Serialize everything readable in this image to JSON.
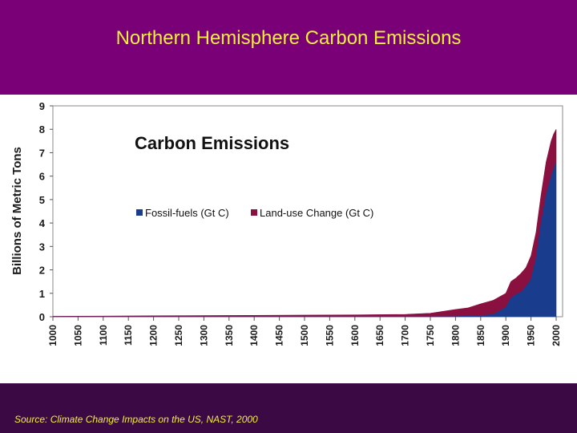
{
  "slide": {
    "title": "Northern Hemisphere Carbon Emissions",
    "source": "Source: Climate Change Impacts on the US, NAST, 2000"
  },
  "colors": {
    "background": "#7a0077",
    "title_text": "#f2ee3c",
    "footer_band": "#3b0a44",
    "fossil": "#1a3c8c",
    "landuse": "#8a1040"
  },
  "chart_data": {
    "type": "area",
    "title": "Carbon Emissions",
    "ylabel": "Billions of Metric Tons",
    "xlabel": "",
    "ylim": [
      0,
      9
    ],
    "xlim": [
      1000,
      2000
    ],
    "yticks": [
      "0",
      "1",
      "2",
      "3",
      "4",
      "5",
      "6",
      "7",
      "8",
      "9"
    ],
    "xticks": [
      "1000",
      "1050",
      "1100",
      "1150",
      "1200",
      "1250",
      "1300",
      "1350",
      "1400",
      "1450",
      "1500",
      "1550",
      "1600",
      "1650",
      "1700",
      "1750",
      "1800",
      "1850",
      "1900",
      "1950",
      "2000"
    ],
    "legend_position": "center-left",
    "stacked": true,
    "x": [
      1000,
      1100,
      1200,
      1300,
      1400,
      1500,
      1600,
      1700,
      1750,
      1800,
      1825,
      1850,
      1875,
      1900,
      1910,
      1920,
      1930,
      1940,
      1950,
      1960,
      1970,
      1980,
      1990,
      1995,
      2000
    ],
    "series": [
      {
        "name": "Fossil-fuels (Gt C)",
        "values": [
          0,
          0,
          0,
          0,
          0,
          0,
          0,
          0,
          0,
          0.01,
          0.03,
          0.05,
          0.1,
          0.4,
          0.8,
          0.95,
          1.05,
          1.3,
          1.6,
          2.5,
          4.0,
          5.2,
          6.0,
          6.3,
          6.6
        ]
      },
      {
        "name": "Land-use Change (Gt C)",
        "values": [
          0.02,
          0.03,
          0.04,
          0.05,
          0.06,
          0.07,
          0.08,
          0.1,
          0.15,
          0.3,
          0.35,
          0.5,
          0.6,
          0.6,
          0.7,
          0.7,
          0.8,
          0.8,
          1.0,
          1.1,
          1.2,
          1.4,
          1.5,
          1.5,
          1.4
        ]
      }
    ]
  }
}
